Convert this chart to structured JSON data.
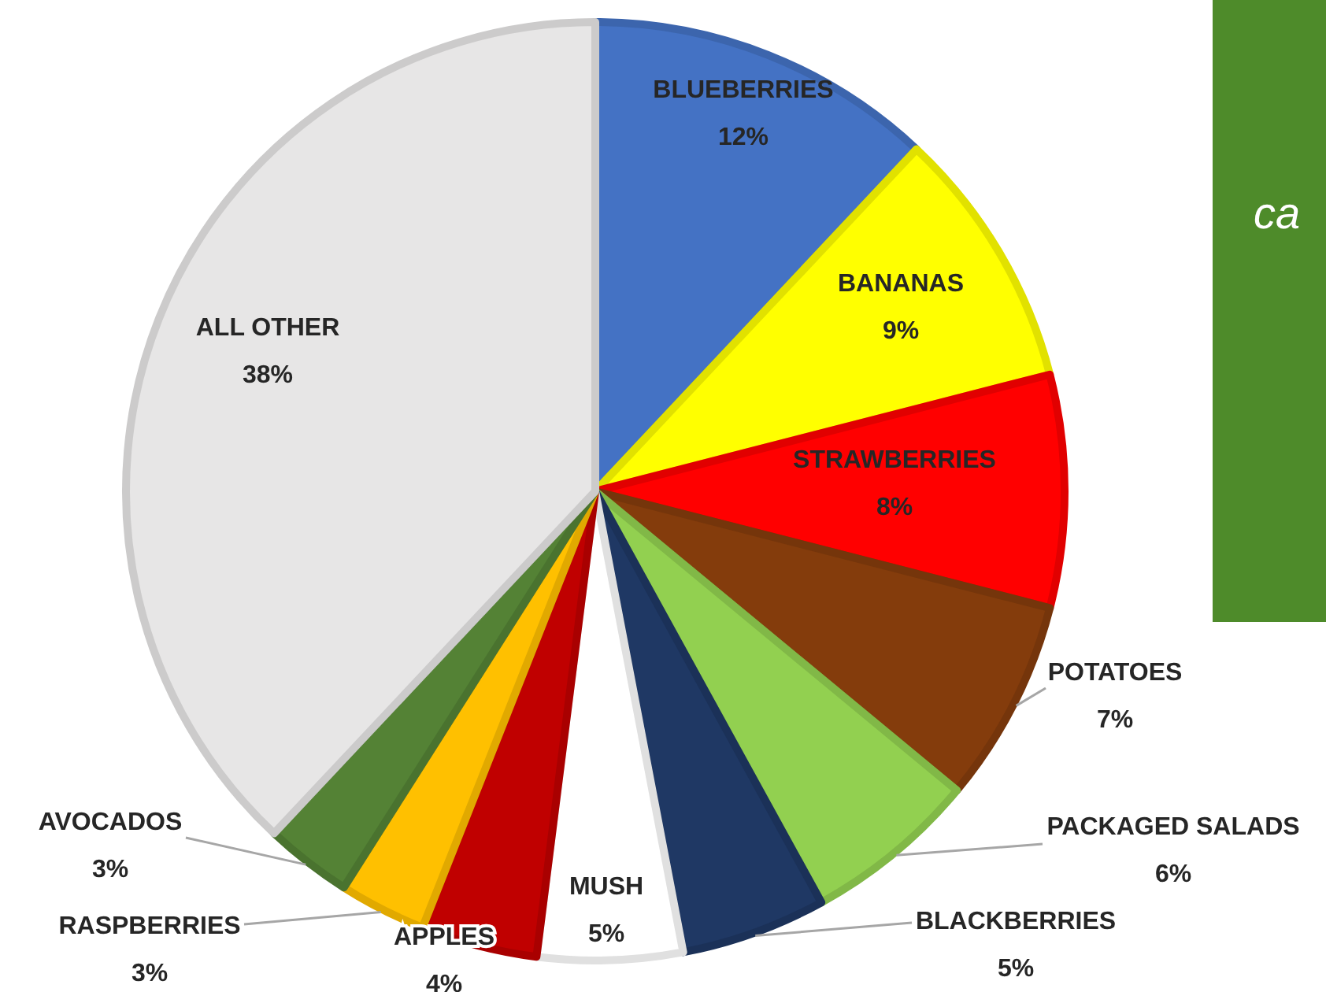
{
  "chart_data": {
    "type": "pie",
    "categories": [
      "BLUEBERRIES",
      "BANANAS",
      "STRAWBERRIES",
      "POTATOES",
      "PACKAGED SALADS",
      "BLACKBERRIES",
      "MUSH",
      "APPLES",
      "RASPBERRIES",
      "AVOCADOS",
      "ALL OTHER"
    ],
    "values": [
      12,
      9,
      8,
      7,
      6,
      5,
      5,
      4,
      3,
      3,
      38
    ],
    "value_labels": [
      "12%",
      "9%",
      "8%",
      "7%",
      "6%",
      "5%",
      "5%",
      "4%",
      "3%",
      "3%",
      "38%"
    ],
    "colors": [
      "#4472c4",
      "#ffff00",
      "#ff0000",
      "#843c0c",
      "#92d050",
      "#1f3864",
      "#ffffff",
      "#c00000",
      "#ffc000",
      "#548235",
      "#e7e6e6"
    ],
    "annotations": [
      "ca"
    ]
  }
}
